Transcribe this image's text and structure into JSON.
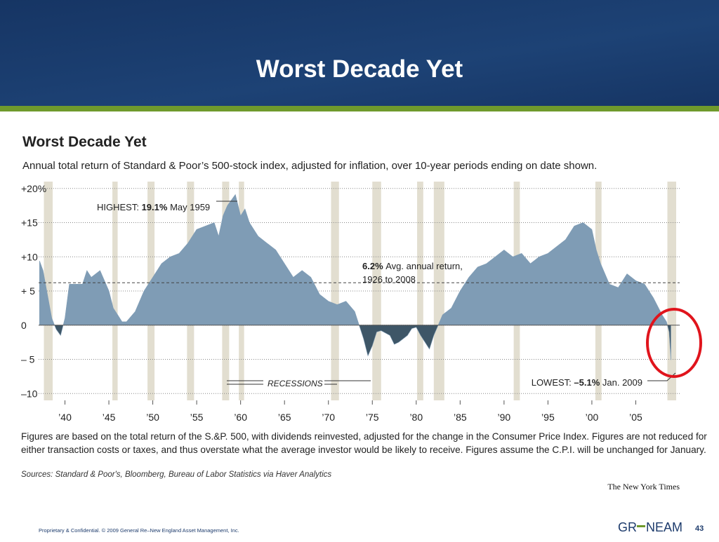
{
  "slide_title": "Worst Decade Yet",
  "chart_data": {
    "type": "area",
    "title": "Worst Decade Yet",
    "subtitle": "Annual total return of Standard & Poor’s 500-stock index, adjusted for inflation, over 10-year periods ending on date shown.",
    "x": [
      1937.1,
      1937.5,
      1938,
      1938.5,
      1939,
      1939.5,
      1940,
      1940.5,
      1941,
      1942,
      1942.5,
      1943,
      1944,
      1945,
      1945.5,
      1946,
      1946.5,
      1947,
      1948,
      1949,
      1950,
      1951,
      1952,
      1953,
      1954,
      1955,
      1956,
      1957,
      1957.5,
      1958,
      1958.5,
      1959.4,
      1960,
      1960.5,
      1961,
      1962,
      1963,
      1964,
      1965,
      1966,
      1967,
      1968,
      1969,
      1970,
      1971,
      1972,
      1973,
      1973.5,
      1974,
      1974.5,
      1975,
      1975.5,
      1976,
      1977,
      1977.5,
      1978,
      1979,
      1979.5,
      1980,
      1980.5,
      1981,
      1981.5,
      1982,
      1982.5,
      1983,
      1984,
      1985,
      1986,
      1987,
      1988,
      1989,
      1990,
      1991,
      1992,
      1993,
      1994,
      1995,
      1996,
      1997,
      1998,
      1999,
      2000,
      2000.5,
      2001,
      2002,
      2003,
      2004,
      2005,
      2006,
      2007,
      2008,
      2008.5,
      2008.8,
      2009
    ],
    "series": [
      {
        "color": "#7f9cb5",
        "negative_color": "#3e5667",
        "values": [
          9.4,
          8,
          4.5,
          1,
          -0.6,
          -1.5,
          1,
          6,
          6,
          6,
          8,
          7,
          8,
          5,
          2.5,
          1.5,
          0.5,
          0.5,
          2,
          5,
          7,
          9,
          10,
          10.5,
          12,
          14,
          14.5,
          15,
          13,
          16,
          17.5,
          19.1,
          16,
          17,
          15,
          13,
          12,
          11,
          9,
          7,
          8,
          7,
          4.5,
          3.5,
          3,
          3.5,
          2,
          0,
          -2,
          -4.5,
          -3,
          -1,
          -0.8,
          -1.5,
          -2.8,
          -2.5,
          -1.5,
          -0.5,
          -0.3,
          -1.5,
          -2.5,
          -3.5,
          -1.5,
          0,
          1.5,
          2.5,
          5,
          7,
          8.5,
          9,
          10,
          11,
          10,
          10.5,
          9,
          10,
          10.5,
          11.5,
          12.5,
          14.5,
          15,
          14,
          11,
          9,
          6,
          5.5,
          7.5,
          6.5,
          6,
          4,
          1.5,
          0.5,
          -1,
          -5.1
        ]
      }
    ],
    "xlim": [
      1937,
      2010
    ],
    "xticks": [
      {
        "value": 1940,
        "label": "’40"
      },
      {
        "value": 1945,
        "label": "’45"
      },
      {
        "value": 1950,
        "label": "’50"
      },
      {
        "value": 1955,
        "label": "’55"
      },
      {
        "value": 1960,
        "label": "’60"
      },
      {
        "value": 1965,
        "label": "’65"
      },
      {
        "value": 1970,
        "label": "’70"
      },
      {
        "value": 1975,
        "label": "’75"
      },
      {
        "value": 1980,
        "label": "’80"
      },
      {
        "value": 1985,
        "label": "’85"
      },
      {
        "value": 1990,
        "label": "’90"
      },
      {
        "value": 1995,
        "label": "’95"
      },
      {
        "value": 2000,
        "label": "’00"
      },
      {
        "value": 2005,
        "label": "’05"
      }
    ],
    "ylim": [
      -11,
      21
    ],
    "yticks": [
      {
        "value": 20,
        "label": "+20%"
      },
      {
        "value": 15,
        "label": "+15"
      },
      {
        "value": 10,
        "label": "+10"
      },
      {
        "value": 5,
        "label": "+  5"
      },
      0,
      {
        "value": -5,
        "label": "– 5"
      },
      {
        "value": -10,
        "label": "–10"
      }
    ],
    "grid": true,
    "average_line": 6.2,
    "recessions": [
      [
        1937.6,
        1938.6
      ],
      [
        1945.4,
        1946.0
      ],
      [
        1949.4,
        1950.2
      ],
      [
        1953.9,
        1954.7
      ],
      [
        1957.9,
        1958.7
      ],
      [
        1959.8,
        1960.4
      ],
      [
        1970.3,
        1971.2
      ],
      [
        1975.0,
        1976.0
      ],
      [
        1980.1,
        1980.8
      ],
      [
        1982.0,
        1983.2
      ],
      [
        1991.1,
        1991.8
      ],
      [
        2000.4,
        2001.1
      ],
      [
        2008.6,
        2009.6
      ]
    ],
    "recession_color": "#e2ded0",
    "recession_label": "RECESSIONS",
    "annotations": {
      "highest_prefix": "HIGHEST:",
      "highest_value": "19.1%",
      "highest_date": "May 1959",
      "avg_value": "6.2%",
      "avg_text": "Avg. annual return,",
      "avg_period": "1926 to 2008",
      "lowest_prefix": "LOWEST:",
      "lowest_value": "–5.1%",
      "lowest_date": "Jan. 2009"
    },
    "footnote": [
      "Figures are based on the total return of the S.&P. 500, with dividends reinvested, adjusted for the change in the Consumer Price Index.  Figures are not reduced for",
      "either transaction costs or taxes, and thus overstate what the average investor would be likely to receive. Figures assume the C.P.I. will be unchanged for January."
    ],
    "sources": "Sources: Standard & Poor's, Bloomberg, Bureau of Labor Statistics via Haver Analytics",
    "credit": "The New York Times"
  },
  "footer": {
    "confidential": "Proprietary & Confidential. © 2009 General Re–New England Asset Management, Inc.",
    "logo_left": "GR",
    "logo_right": "NEAM",
    "page": "43"
  }
}
